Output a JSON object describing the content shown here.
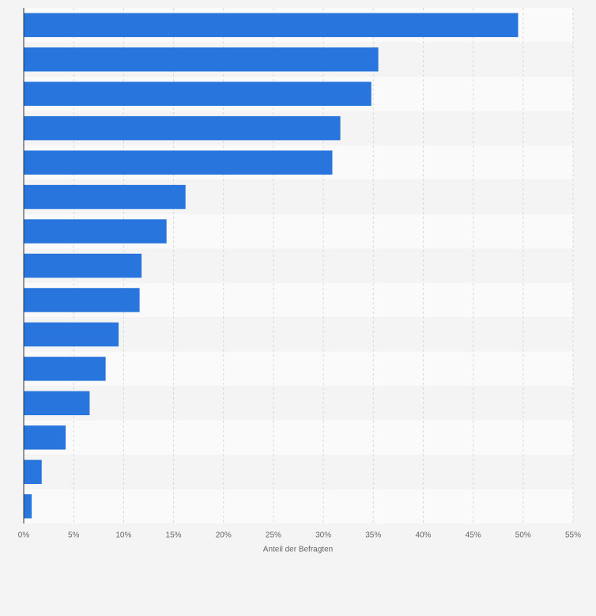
{
  "chart_data": {
    "type": "bar",
    "orientation": "horizontal",
    "categories": [
      null,
      null,
      null,
      null,
      null,
      null,
      null,
      null,
      null,
      null,
      null,
      null,
      null,
      null,
      null
    ],
    "values": [
      49.5,
      35.5,
      34.8,
      31.7,
      30.9,
      16.2,
      14.3,
      11.8,
      11.6,
      9.5,
      8.2,
      6.6,
      4.2,
      1.8,
      0.8
    ],
    "color": "#2876dd",
    "xlabel": "Anteil der Befragten",
    "xlim": [
      0,
      55
    ],
    "xticks": [
      {
        "value": 0,
        "label": "0%"
      },
      {
        "value": 5,
        "label": "5%"
      },
      {
        "value": 10,
        "label": "10%"
      },
      {
        "value": 15,
        "label": "15%"
      },
      {
        "value": 20,
        "label": "20%"
      },
      {
        "value": 25,
        "label": "25%"
      },
      {
        "value": 30,
        "label": "30%"
      },
      {
        "value": 35,
        "label": "35%"
      },
      {
        "value": 40,
        "label": "40%"
      },
      {
        "value": 45,
        "label": "45%"
      },
      {
        "value": 50,
        "label": "50%"
      },
      {
        "value": 55,
        "label": "55%"
      }
    ],
    "grid": true
  }
}
